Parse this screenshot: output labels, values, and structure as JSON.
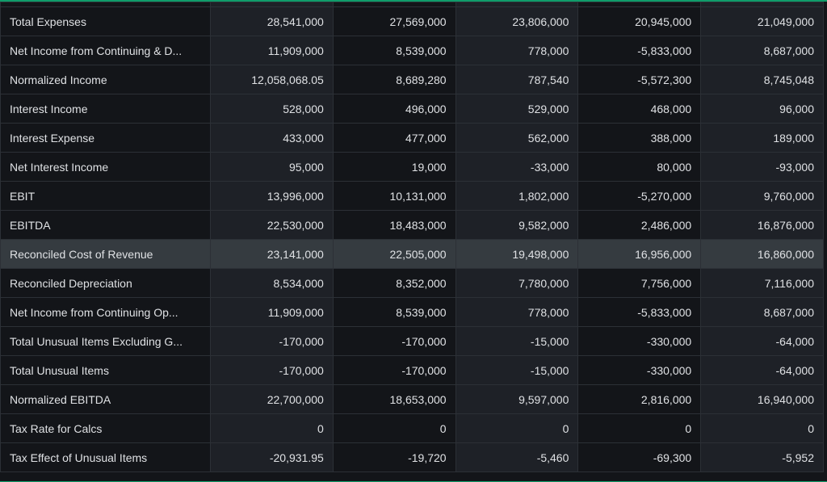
{
  "rows": [
    {
      "label": "Total Expenses",
      "values": [
        "28,541,000",
        "27,569,000",
        "23,806,000",
        "20,945,000",
        "21,049,000"
      ]
    },
    {
      "label": "Net Income from Continuing & D...",
      "values": [
        "11,909,000",
        "8,539,000",
        "778,000",
        "-5,833,000",
        "8,687,000"
      ]
    },
    {
      "label": "Normalized Income",
      "values": [
        "12,058,068.05",
        "8,689,280",
        "787,540",
        "-5,572,300",
        "8,745,048"
      ]
    },
    {
      "label": "Interest Income",
      "values": [
        "528,000",
        "496,000",
        "529,000",
        "468,000",
        "96,000"
      ]
    },
    {
      "label": "Interest Expense",
      "values": [
        "433,000",
        "477,000",
        "562,000",
        "388,000",
        "189,000"
      ]
    },
    {
      "label": "Net Interest Income",
      "values": [
        "95,000",
        "19,000",
        "-33,000",
        "80,000",
        "-93,000"
      ]
    },
    {
      "label": "EBIT",
      "values": [
        "13,996,000",
        "10,131,000",
        "1,802,000",
        "-5,270,000",
        "9,760,000"
      ]
    },
    {
      "label": "EBITDA",
      "values": [
        "22,530,000",
        "18,483,000",
        "9,582,000",
        "2,486,000",
        "16,876,000"
      ]
    },
    {
      "label": "Reconciled Cost of Revenue",
      "values": [
        "23,141,000",
        "22,505,000",
        "19,498,000",
        "16,956,000",
        "16,860,000"
      ],
      "highlighted": true
    },
    {
      "label": "Reconciled Depreciation",
      "values": [
        "8,534,000",
        "8,352,000",
        "7,780,000",
        "7,756,000",
        "7,116,000"
      ]
    },
    {
      "label": "Net Income from Continuing Op...",
      "values": [
        "11,909,000",
        "8,539,000",
        "778,000",
        "-5,833,000",
        "8,687,000"
      ]
    },
    {
      "label": "Total Unusual Items Excluding G...",
      "values": [
        "-170,000",
        "-170,000",
        "-15,000",
        "-330,000",
        "-64,000"
      ]
    },
    {
      "label": "Total Unusual Items",
      "values": [
        "-170,000",
        "-170,000",
        "-15,000",
        "-330,000",
        "-64,000"
      ]
    },
    {
      "label": "Normalized EBITDA",
      "values": [
        "22,700,000",
        "18,653,000",
        "9,597,000",
        "2,816,000",
        "16,940,000"
      ]
    },
    {
      "label": "Tax Rate for Calcs",
      "values": [
        "0",
        "0",
        "0",
        "0",
        "0"
      ]
    },
    {
      "label": "Tax Effect of Unusual Items",
      "values": [
        "-20,931.95",
        "-19,720",
        "-5,460",
        "-69,300",
        "-5,952"
      ]
    }
  ],
  "colors": {
    "accent": "#0f9d6a",
    "highlight_row": "#353b40"
  }
}
